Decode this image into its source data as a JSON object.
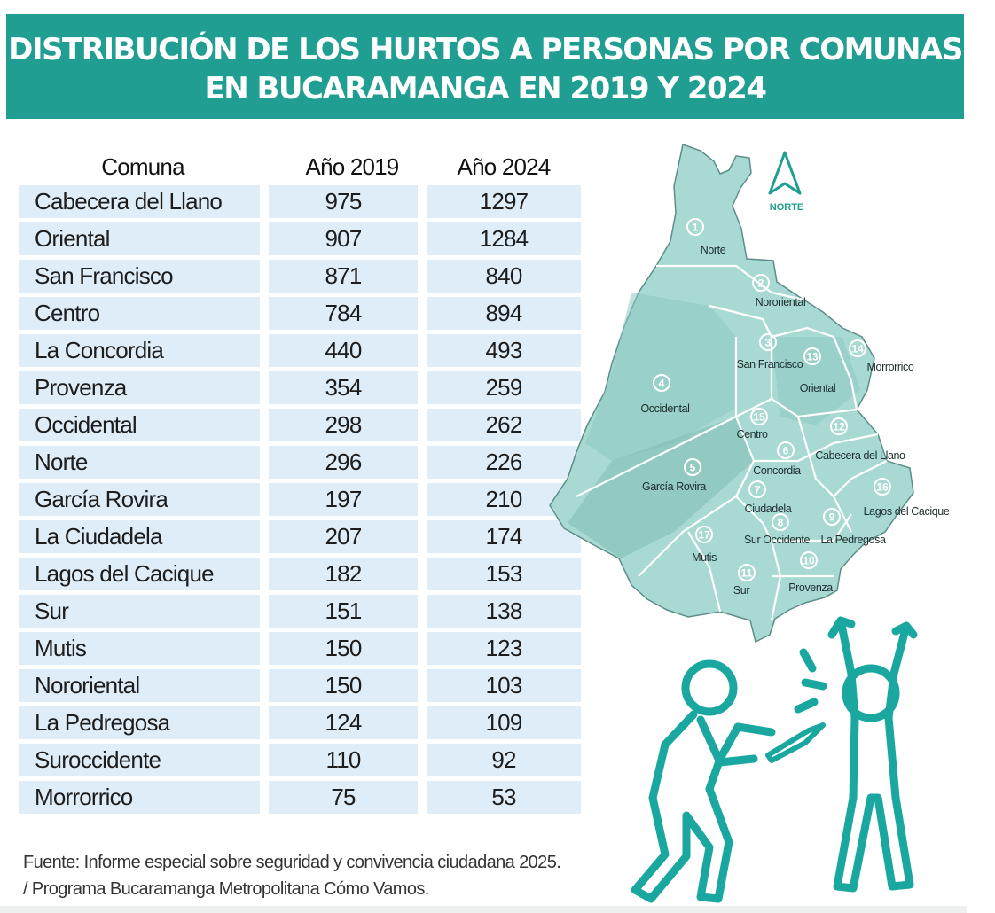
{
  "title_line1": "DISTRIBUCIÓN DE LOS HURTOS A PERSONAS POR COMUNAS",
  "title_line2": "EN BUCARAMANGA EN 2019 Y 2024",
  "colors": {
    "banner": "#1f9e91",
    "row_fill": "#dfedf8",
    "map_fill": "#a9d9d3",
    "map_stroke": "#ffffff",
    "illustration": "#1aa7a0"
  },
  "chart_data": {
    "type": "table",
    "title": "DISTRIBUCIÓN DE LOS HURTOS A PERSONAS POR COMUNAS EN BUCARAMANGA EN 2019 Y 2024",
    "columns": [
      "Comuna",
      "Año 2019",
      "Año 2024"
    ],
    "rows": [
      [
        "Cabecera del Llano",
        975,
        1297
      ],
      [
        "Oriental",
        907,
        1284
      ],
      [
        "San Francisco",
        871,
        840
      ],
      [
        "Centro",
        784,
        894
      ],
      [
        "La Concordia",
        440,
        493
      ],
      [
        "Provenza",
        354,
        259
      ],
      [
        "Occidental",
        298,
        262
      ],
      [
        "Norte",
        296,
        226
      ],
      [
        "García Rovira",
        197,
        210
      ],
      [
        "La Ciudadela",
        207,
        174
      ],
      [
        "Lagos del Cacique",
        182,
        153
      ],
      [
        "Sur",
        151,
        138
      ],
      [
        "Mutis",
        150,
        123
      ],
      [
        "Nororiental",
        150,
        103
      ],
      [
        "La Pedregosa",
        124,
        109
      ],
      [
        "Suroccidente",
        110,
        92
      ],
      [
        "Morrorrico",
        75,
        53
      ]
    ]
  },
  "map": {
    "compass_label": "NORTE",
    "compass_icon": "north-arrow-icon",
    "comunas": [
      {
        "num": "1",
        "name": "Norte"
      },
      {
        "num": "2",
        "name": "Nororiental"
      },
      {
        "num": "3",
        "name": "San Francisco"
      },
      {
        "num": "4",
        "name": "Occidental"
      },
      {
        "num": "5",
        "name": "García Rovira"
      },
      {
        "num": "6",
        "name": "Concordia"
      },
      {
        "num": "7",
        "name": "Ciudadela"
      },
      {
        "num": "8",
        "name": "Sur Occidente"
      },
      {
        "num": "9",
        "name": "La Pedregosa"
      },
      {
        "num": "10",
        "name": "Provenza"
      },
      {
        "num": "11",
        "name": "Sur"
      },
      {
        "num": "12",
        "name": "Cabecera del Llano"
      },
      {
        "num": "13",
        "name": "Oriental"
      },
      {
        "num": "14",
        "name": "Morrorrico"
      },
      {
        "num": "15",
        "name": "Centro"
      },
      {
        "num": "16",
        "name": "Lagos del Cacique"
      },
      {
        "num": "17",
        "name": "Mutis"
      }
    ]
  },
  "source_line1": "Fuente: Informe especial sobre seguridad y convivencia ciudadana 2025.",
  "source_line2": "/ Programa Bucaramanga Metropolitana Cómo Vamos.",
  "illustration_icon": "robbery-illustration-icon"
}
